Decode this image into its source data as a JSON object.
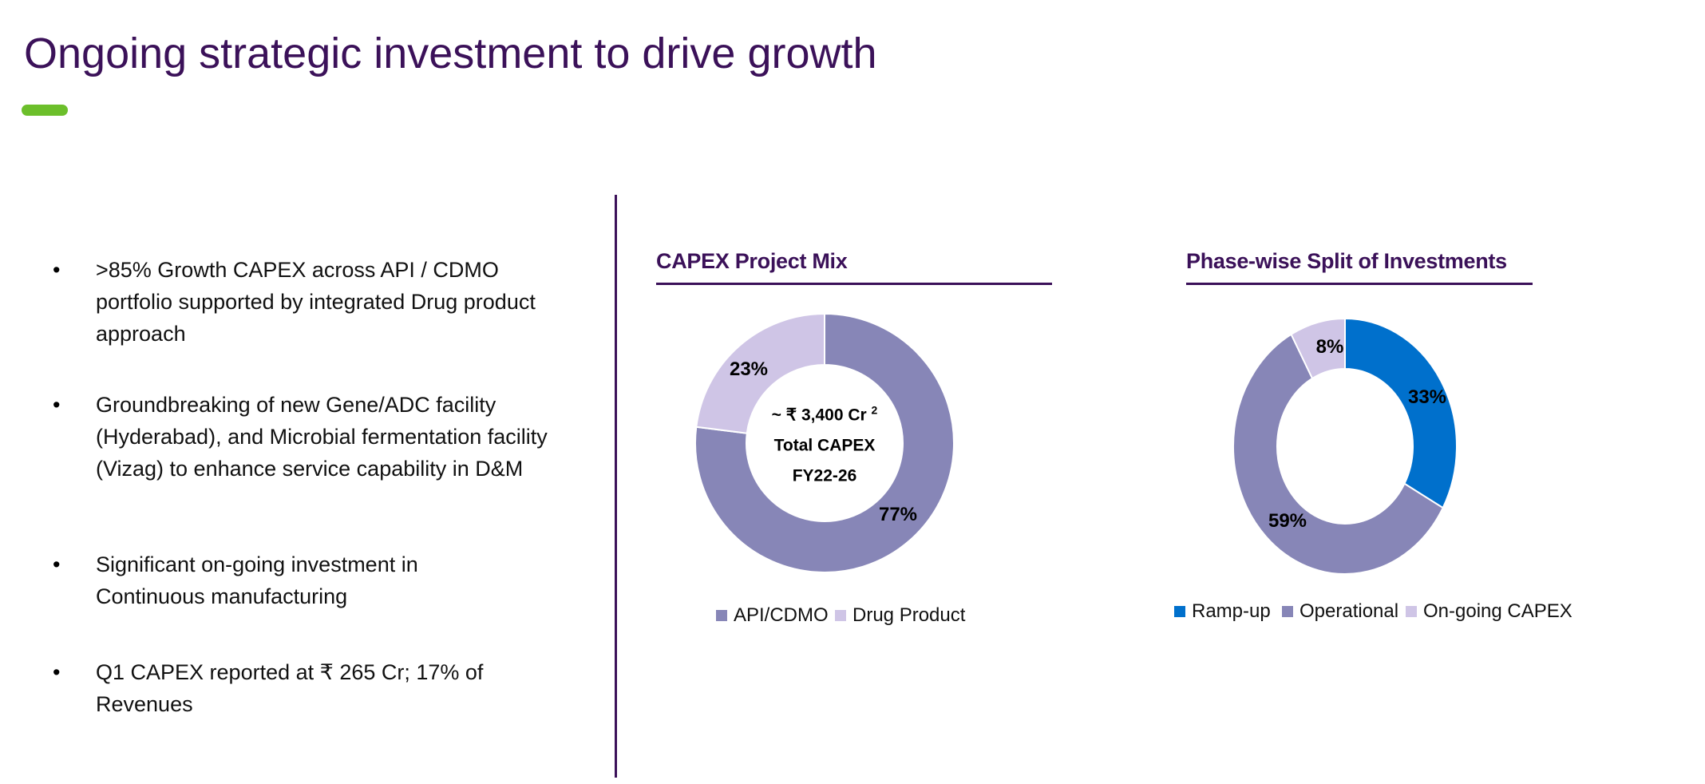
{
  "title": "Ongoing strategic investment to drive growth",
  "bullets": [
    ">85% Growth CAPEX across API / CDMO portfolio supported by integrated Drug product  approach",
    "Groundbreaking of new Gene/ADC facility (Hyderabad), and Microbial fermentation facility (Vizag) to enhance service capability in D&M",
    "Significant on-going investment in Continuous manufacturing",
    "Q1 CAPEX reported at ₹ 265 Cr; 17% of Revenues"
  ],
  "bullet_symbol": "•",
  "chart_data": [
    {
      "type": "pie",
      "variant": "donut",
      "title": "CAPEX Project Mix",
      "center_text": {
        "line1": "~ ₹ 3,400 Cr",
        "sup": "2",
        "line2": "Total CAPEX",
        "line3": "FY22-26"
      },
      "categories": [
        "API/CDMO",
        "Drug Product"
      ],
      "values": [
        77,
        23
      ],
      "labels": [
        "77%",
        "23%"
      ],
      "colors": [
        "#8786b7",
        "#cfc5e6"
      ],
      "legend": "bottom"
    },
    {
      "type": "pie",
      "variant": "donut",
      "title": "Phase-wise Split of  Investments",
      "categories": [
        "Ramp-up",
        "Operational",
        "On-going CAPEX"
      ],
      "values": [
        33,
        59,
        8
      ],
      "labels": [
        "33%",
        "59%",
        "8%"
      ],
      "colors": [
        "#0070cc",
        "#8786b7",
        "#cfc5e6"
      ],
      "legend": "bottom"
    }
  ]
}
